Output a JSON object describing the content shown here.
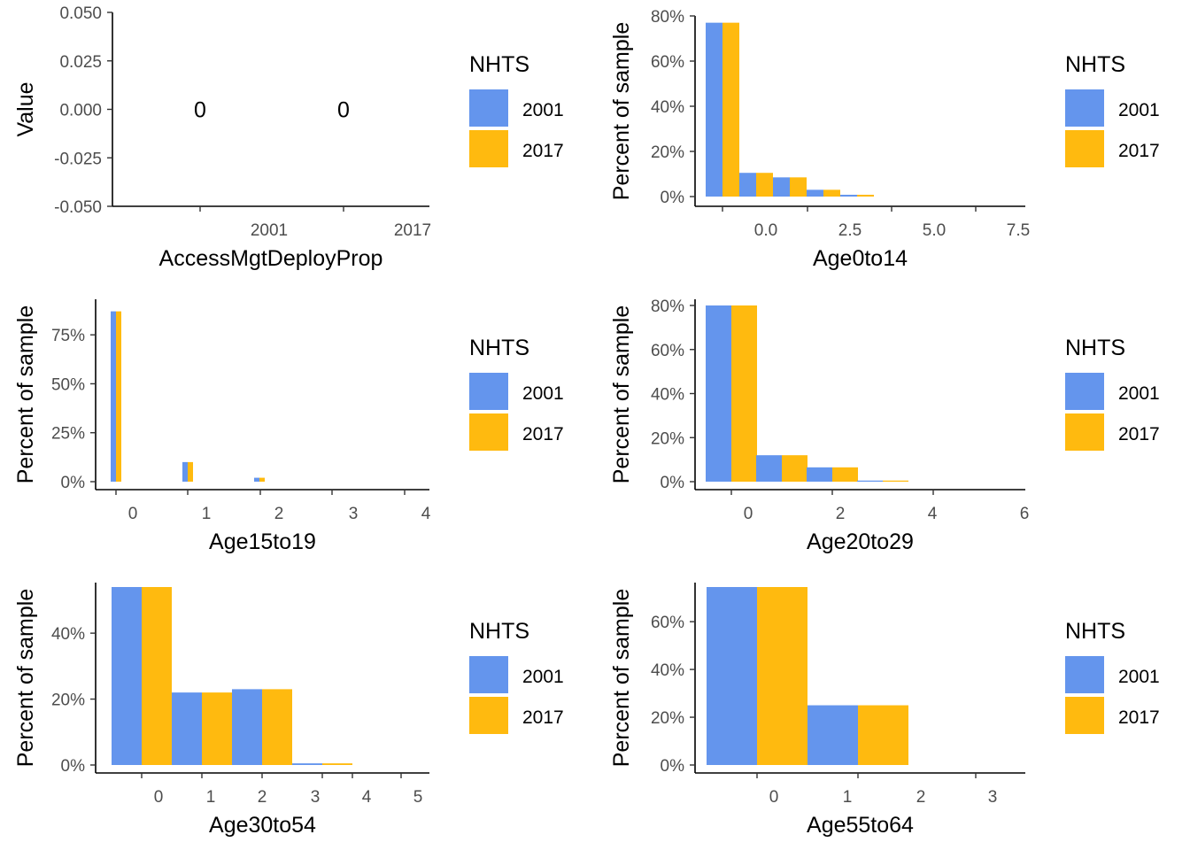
{
  "legend": {
    "title": "NHTS",
    "entries": [
      {
        "label": "2001",
        "color": "#6495ED"
      },
      {
        "label": "2017",
        "color": "#FFBA0F"
      }
    ]
  },
  "chart_data": [
    {
      "type": "text",
      "xlabel": "AccessMgtDeployProp",
      "ylabel": "Value",
      "categories": [
        "2001",
        "2017"
      ],
      "values": [
        0,
        0
      ],
      "value_labels": [
        "0",
        "0"
      ],
      "ylim": [
        -0.05,
        0.05
      ],
      "y_ticks": [
        "0.050",
        "0.025",
        "0.000",
        "-0.025",
        "-0.050"
      ],
      "grid": false
    },
    {
      "type": "bar",
      "xlabel": "Age0to14",
      "ylabel": "Percent of sample",
      "x": [
        -1,
        0,
        1,
        2,
        3
      ],
      "series": [
        {
          "name": "2001",
          "values": [
            0.77,
            0.105,
            0.085,
            0.03,
            0.008
          ]
        },
        {
          "name": "2017",
          "values": [
            0.77,
            0.105,
            0.085,
            0.03,
            0.008
          ]
        }
      ],
      "xlim": [
        -2.5,
        7.5
      ],
      "x_ticks": [
        {
          "v": 0,
          "label": "0.0"
        },
        {
          "v": 2.5,
          "label": "2.5"
        },
        {
          "v": 5,
          "label": "5.0"
        },
        {
          "v": 7.5,
          "label": "7.5"
        }
      ],
      "extra_x_tick_marks": [
        -1,
        1,
        2,
        3,
        4,
        5,
        6
      ],
      "ylim": [
        0,
        0.8
      ],
      "y_ticks": [
        {
          "v": 0,
          "label": "0%"
        },
        {
          "v": 0.2,
          "label": "20%"
        },
        {
          "v": 0.4,
          "label": "40%"
        },
        {
          "v": 0.6,
          "label": "60%"
        },
        {
          "v": 0.8,
          "label": "80%"
        }
      ],
      "grid": false
    },
    {
      "type": "bar",
      "xlabel": "Age15to19",
      "ylabel": "Percent of sample",
      "x": [
        0,
        1,
        2
      ],
      "series": [
        {
          "name": "2001",
          "values": [
            0.87,
            0.1,
            0.02
          ]
        },
        {
          "name": "2017",
          "values": [
            0.87,
            0.1,
            0.02
          ]
        }
      ],
      "xlim": [
        -0.25,
        4
      ],
      "x_ticks": [
        {
          "v": 0,
          "label": "0"
        },
        {
          "v": 1,
          "label": "1"
        },
        {
          "v": 2,
          "label": "2"
        },
        {
          "v": 3,
          "label": "3"
        },
        {
          "v": 4,
          "label": "4"
        }
      ],
      "ylim": [
        0,
        0.9
      ],
      "y_ticks": [
        {
          "v": 0,
          "label": "0%"
        },
        {
          "v": 0.25,
          "label": "25%"
        },
        {
          "v": 0.5,
          "label": "50%"
        },
        {
          "v": 0.75,
          "label": "75%"
        }
      ],
      "grid": false
    },
    {
      "type": "bar",
      "xlabel": "Age20to29",
      "ylabel": "Percent of sample",
      "x": [
        0,
        1,
        2,
        3
      ],
      "series": [
        {
          "name": "2001",
          "values": [
            0.8,
            0.12,
            0.065,
            0.005
          ]
        },
        {
          "name": "2017",
          "values": [
            0.8,
            0.12,
            0.065,
            0.005
          ]
        }
      ],
      "xlim": [
        -1,
        6
      ],
      "x_ticks": [
        {
          "v": 0,
          "label": "0"
        },
        {
          "v": 2,
          "label": "2"
        },
        {
          "v": 4,
          "label": "4"
        },
        {
          "v": 6,
          "label": "6"
        }
      ],
      "ylim": [
        0,
        0.8
      ],
      "y_ticks": [
        {
          "v": 0,
          "label": "0%"
        },
        {
          "v": 0.2,
          "label": "20%"
        },
        {
          "v": 0.4,
          "label": "40%"
        },
        {
          "v": 0.6,
          "label": "60%"
        },
        {
          "v": 0.8,
          "label": "80%"
        }
      ],
      "grid": false
    },
    {
      "type": "bar",
      "xlabel": "Age30to54",
      "ylabel": "Percent of sample",
      "x": [
        0,
        1,
        2,
        3
      ],
      "series": [
        {
          "name": "2001",
          "values": [
            0.54,
            0.22,
            0.23,
            0.005
          ]
        },
        {
          "name": "2017",
          "values": [
            0.54,
            0.22,
            0.23,
            0.005
          ]
        }
      ],
      "xlim": [
        -1,
        5
      ],
      "x_ticks": [
        {
          "v": 0,
          "label": "0"
        },
        {
          "v": 1,
          "label": "1"
        },
        {
          "v": 2,
          "label": "2"
        },
        {
          "v": 3,
          "label": "3"
        },
        {
          "v": 4,
          "label": "4"
        },
        {
          "v": 5,
          "label": "5"
        }
      ],
      "ylim": [
        0,
        0.54
      ],
      "y_ticks": [
        {
          "v": 0,
          "label": "0%"
        },
        {
          "v": 0.2,
          "label": "20%"
        },
        {
          "v": 0.4,
          "label": "40%"
        }
      ],
      "grid": false
    },
    {
      "type": "bar",
      "xlabel": "Age55to64",
      "ylabel": "Percent of sample",
      "x": [
        0,
        1
      ],
      "series": [
        {
          "name": "2001",
          "values": [
            0.745,
            0.25
          ]
        },
        {
          "name": "2017",
          "values": [
            0.745,
            0.25
          ]
        }
      ],
      "xlim": [
        -0.8,
        3
      ],
      "x_ticks": [
        {
          "v": 0,
          "label": "0"
        },
        {
          "v": 1,
          "label": "1"
        },
        {
          "v": 2,
          "label": "2"
        },
        {
          "v": 3,
          "label": "3"
        }
      ],
      "ylim": [
        0,
        0.745
      ],
      "y_ticks": [
        {
          "v": 0,
          "label": "0%"
        },
        {
          "v": 0.2,
          "label": "20%"
        },
        {
          "v": 0.4,
          "label": "40%"
        },
        {
          "v": 0.6,
          "label": "60%"
        }
      ],
      "grid": false
    }
  ]
}
